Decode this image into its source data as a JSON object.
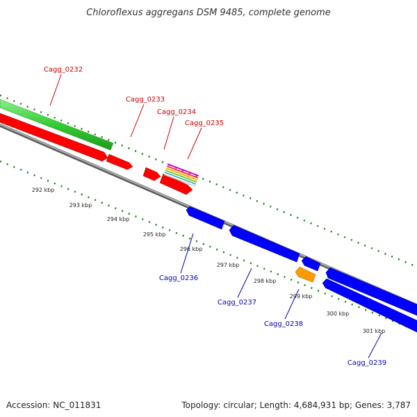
{
  "title": "Chloroflexus aggregans DSM 9485, complete genome",
  "footer": {
    "accession": "Accession: NC_011831",
    "summary": "Topology: circular; Length: 4,684,931 bp; Genes: 3,787"
  },
  "colors": {
    "forward_label": "#cc0000",
    "reverse_label": "#0000aa",
    "backbone": "#8a8a8a",
    "tick": "#1f7a1f",
    "forward_gene": "#ff0000",
    "reverse_gene": "#0000ff",
    "long_feature": "#33cc33",
    "orange_gene": "#ff9900"
  },
  "kbp_ticks": [
    "292 kbp",
    "293 kbp",
    "294 kbp",
    "295 kbp",
    "296 kbp",
    "297 kbp",
    "298 kbp",
    "299 kbp",
    "300 kbp",
    "301 kbp"
  ],
  "genes": [
    {
      "id": "Cagg_0232",
      "strand": "forward"
    },
    {
      "id": "Cagg_0233",
      "strand": "forward"
    },
    {
      "id": "Cagg_0234",
      "strand": "forward"
    },
    {
      "id": "Cagg_0235",
      "strand": "forward"
    },
    {
      "id": "Cagg_0236",
      "strand": "reverse"
    },
    {
      "id": "Cagg_0237",
      "strand": "reverse"
    },
    {
      "id": "Cagg_0238",
      "strand": "reverse"
    },
    {
      "id": "Cagg_0239",
      "strand": "reverse"
    }
  ]
}
